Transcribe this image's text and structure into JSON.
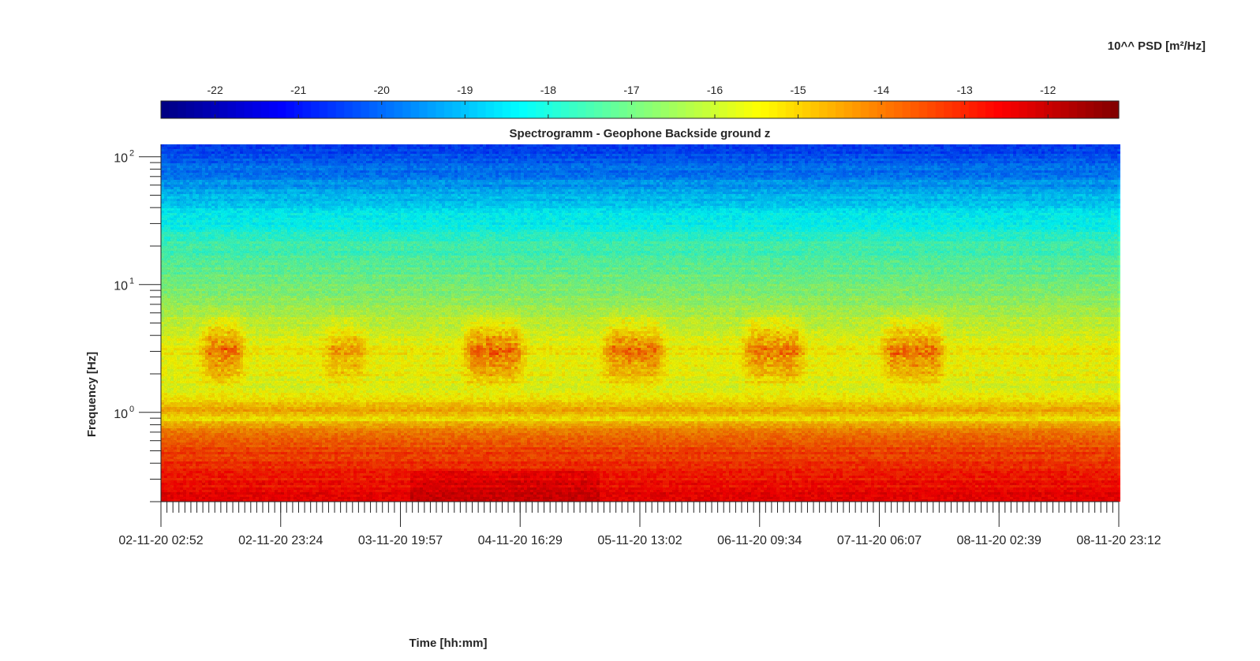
{
  "chart_data": {
    "type": "heatmap",
    "title": "Spectrogramm - Geophone Backside ground z",
    "xlabel": "Time [hh:mm]",
    "ylabel": "Frequency [Hz]",
    "colorbar": {
      "label": "10^^ PSD [m²/Hz]",
      "ticks": [
        -22,
        -21,
        -20,
        -19,
        -18,
        -17,
        -16,
        -15,
        -14,
        -13,
        -12
      ],
      "range": [
        -22.65,
        -11.15
      ],
      "colormap": "jet",
      "placement": "top"
    },
    "x_ticks": [
      "02-11-20 02:52",
      "02-11-20 23:24",
      "03-11-20 19:57",
      "04-11-20 16:29",
      "05-11-20 13:02",
      "06-11-20 09:34",
      "07-11-20 06:07",
      "08-11-20 02:39",
      "08-11-20 23:12"
    ],
    "y_scale": "log",
    "y_ticks": [
      {
        "base": "10",
        "exp": "2",
        "value": 100
      },
      {
        "base": "10",
        "exp": "1",
        "value": 10
      },
      {
        "base": "10",
        "exp": "0",
        "value": 1
      }
    ],
    "ylim": [
      0.2,
      125
    ],
    "grid": false,
    "psd_profile": [
      {
        "freq": 0.2,
        "psd": -12.4
      },
      {
        "freq": 0.3,
        "psd": -12.9
      },
      {
        "freq": 0.5,
        "psd": -13.4
      },
      {
        "freq": 0.7,
        "psd": -14.0
      },
      {
        "freq": 0.9,
        "psd": -15.3
      },
      {
        "freq": 1.0,
        "psd": -14.6
      },
      {
        "freq": 1.5,
        "psd": -15.7
      },
      {
        "freq": 3.0,
        "psd": -15.4
      },
      {
        "freq": 5.0,
        "psd": -16.1
      },
      {
        "freq": 10,
        "psd": -16.9
      },
      {
        "freq": 20,
        "psd": -17.6
      },
      {
        "freq": 40,
        "psd": -18.6
      },
      {
        "freq": 70,
        "psd": -19.7
      },
      {
        "freq": 125,
        "psd": -20.6
      }
    ],
    "active_periods": [
      {
        "start": "02-11-20 09:00",
        "end": "02-11-20 18:00",
        "psd_increase": 1.6
      },
      {
        "start": "03-11-20 06:00",
        "end": "03-11-20 15:00",
        "psd_increase": 1.0
      },
      {
        "start": "04-11-20 06:00",
        "end": "04-11-20 18:00",
        "psd_increase": 1.7
      },
      {
        "start": "05-11-20 06:00",
        "end": "05-11-20 18:00",
        "psd_increase": 1.6
      },
      {
        "start": "06-11-20 06:00",
        "end": "06-11-20 18:00",
        "psd_increase": 1.5
      },
      {
        "start": "07-11-20 06:00",
        "end": "07-11-20 18:00",
        "psd_increase": 1.6
      }
    ]
  }
}
